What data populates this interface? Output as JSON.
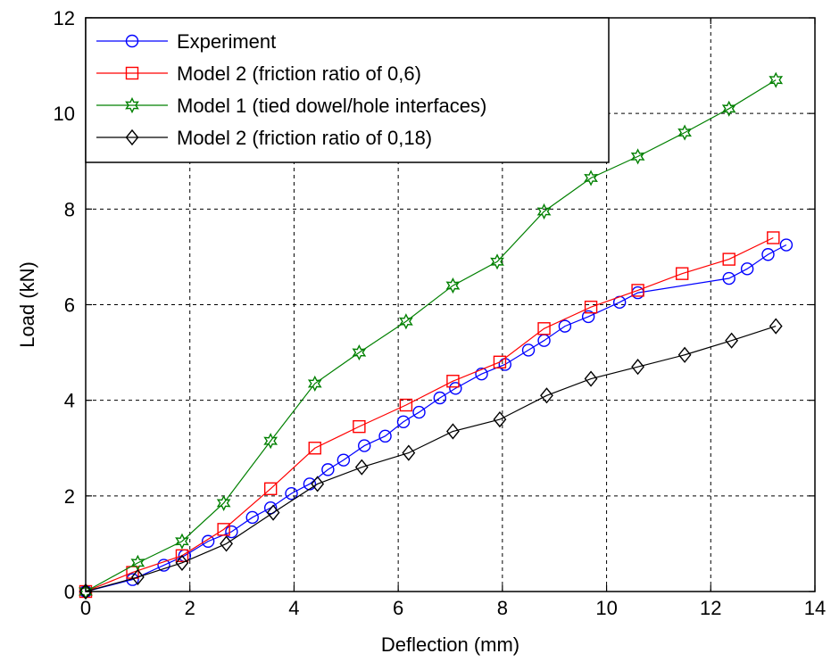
{
  "chart_data": {
    "type": "line",
    "title": "",
    "xlabel": "Deflection (mm)",
    "ylabel": "Load (kN)",
    "xlim": [
      0,
      14
    ],
    "ylim": [
      0,
      12
    ],
    "xticks": [
      0,
      2,
      4,
      6,
      8,
      10,
      12,
      14
    ],
    "yticks": [
      0,
      2,
      4,
      6,
      8,
      10,
      12
    ],
    "grid": true,
    "legend_position": "top-left",
    "series": [
      {
        "name": "Experiment",
        "color": "#0000ff",
        "marker": "circle",
        "x": [
          0,
          0.9,
          1.5,
          1.9,
          2.35,
          2.8,
          3.2,
          3.55,
          3.95,
          4.3,
          4.65,
          4.95,
          5.35,
          5.75,
          6.1,
          6.4,
          6.8,
          7.1,
          7.6,
          8.05,
          8.5,
          8.8,
          9.2,
          9.65,
          10.25,
          10.6,
          12.35,
          12.7,
          13.1,
          13.45
        ],
        "y": [
          0,
          0.25,
          0.55,
          0.75,
          1.05,
          1.25,
          1.55,
          1.75,
          2.05,
          2.25,
          2.55,
          2.75,
          3.05,
          3.25,
          3.55,
          3.75,
          4.05,
          4.25,
          4.55,
          4.75,
          5.05,
          5.25,
          5.55,
          5.75,
          6.05,
          6.25,
          6.55,
          6.75,
          7.05,
          7.25
        ]
      },
      {
        "name": "Model 2 (friction ratio of  0,6)",
        "color": "#ff0000",
        "marker": "square",
        "x": [
          0,
          0.9,
          1.85,
          2.65,
          3.55,
          4.4,
          5.25,
          6.15,
          7.05,
          7.95,
          8.8,
          9.7,
          10.6,
          11.45,
          12.35,
          13.2
        ],
        "y": [
          0,
          0.4,
          0.75,
          1.3,
          2.15,
          3.0,
          3.45,
          3.9,
          4.4,
          4.8,
          5.5,
          5.95,
          6.3,
          6.65,
          6.95,
          7.4
        ]
      },
      {
        "name": "Model 1 (tied dowel/hole interfaces)",
        "color": "#008000",
        "marker": "star",
        "x": [
          0,
          1.0,
          1.85,
          2.65,
          3.55,
          4.4,
          5.25,
          6.15,
          7.05,
          7.9,
          8.8,
          9.7,
          10.6,
          11.5,
          12.35,
          13.25
        ],
        "y": [
          0,
          0.6,
          1.05,
          1.85,
          3.15,
          4.35,
          5.0,
          5.65,
          6.4,
          6.9,
          7.95,
          8.65,
          9.1,
          9.6,
          10.1,
          10.7
        ]
      },
      {
        "name": "Model 2 (friction ratio of  0,18)",
        "color": "#000000",
        "marker": "diamond",
        "x": [
          0,
          1.0,
          1.85,
          2.7,
          3.6,
          4.45,
          5.3,
          6.2,
          7.05,
          7.95,
          8.85,
          9.7,
          10.6,
          11.5,
          12.4,
          13.25
        ],
        "y": [
          0,
          0.3,
          0.6,
          1.0,
          1.65,
          2.25,
          2.6,
          2.9,
          3.35,
          3.6,
          4.1,
          4.45,
          4.7,
          4.95,
          5.25,
          5.55
        ]
      }
    ]
  }
}
